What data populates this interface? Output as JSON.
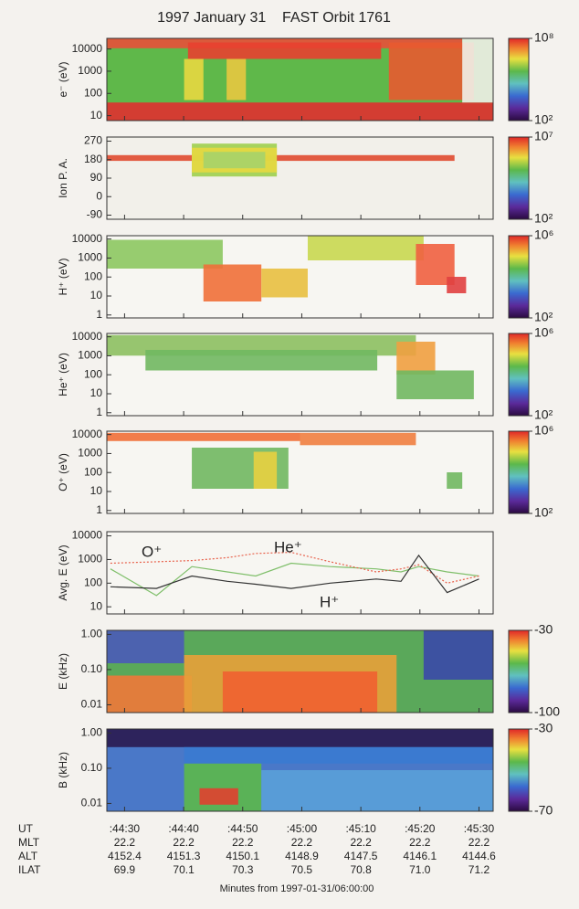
{
  "figure": {
    "title": "1997 January 31    FAST Orbit 1761"
  },
  "chart_data": [
    {
      "type": "heatmap",
      "ylabel": "e⁻ (eV)",
      "log_scale": true,
      "ylim": [
        6,
        30000
      ],
      "yticks": [
        10,
        100,
        1000,
        10000
      ],
      "background": "#5fb84a",
      "clim": [
        100,
        100000000
      ],
      "cticks": [
        {
          "value": 100,
          "label": "10²"
        },
        {
          "value": 100000000,
          "label": "10⁸"
        }
      ]
    },
    {
      "type": "heatmap",
      "ylabel": "Ion P. A.",
      "log_scale": false,
      "ylim": [
        -110,
        290
      ],
      "yticks": [
        -90,
        0,
        90,
        180,
        270
      ],
      "background": "#f2f0ea",
      "clim": [
        100,
        10000000
      ],
      "cticks": [
        {
          "value": 100,
          "label": "10²"
        },
        {
          "value": 10000000,
          "label": "10⁷"
        }
      ]
    },
    {
      "type": "heatmap",
      "ylabel": "H⁺ (eV)",
      "log_scale": true,
      "ylim": [
        0.7,
        15000
      ],
      "yticks": [
        1,
        10,
        100,
        1000,
        10000
      ],
      "background": "#f7f6f2",
      "clim": [
        100,
        1000000
      ],
      "cticks": [
        {
          "value": 100,
          "label": "10²"
        },
        {
          "value": 1000000,
          "label": "10⁶"
        }
      ]
    },
    {
      "type": "heatmap",
      "ylabel": "He⁺ (eV)",
      "log_scale": true,
      "ylim": [
        0.7,
        15000
      ],
      "yticks": [
        1,
        10,
        100,
        1000,
        10000
      ],
      "background": "#f7f6f2",
      "clim": [
        100,
        1000000
      ],
      "cticks": [
        {
          "value": 100,
          "label": "10²"
        },
        {
          "value": 1000000,
          "label": "10⁶"
        }
      ]
    },
    {
      "type": "heatmap",
      "ylabel": "O⁺ (eV)",
      "log_scale": true,
      "ylim": [
        0.7,
        15000
      ],
      "yticks": [
        1,
        10,
        100,
        1000,
        10000
      ],
      "background": "#f7f6f2",
      "clim": [
        100,
        1000000
      ],
      "cticks": [
        {
          "value": 100,
          "label": "10²"
        },
        {
          "value": 1000000,
          "label": "10⁶"
        }
      ]
    },
    {
      "type": "line",
      "ylabel": "Avg. E  (eV)",
      "log_scale": true,
      "ylim": [
        5,
        15000
      ],
      "yticks": [
        10,
        100,
        1000,
        10000
      ],
      "x": [
        44.46,
        44.59,
        44.69,
        44.79,
        44.87,
        44.97,
        45.08,
        45.21,
        45.28,
        45.33,
        45.41,
        45.5
      ],
      "series": [
        {
          "name": "O⁺",
          "color": "#7fbf6a",
          "values": [
            400,
            30,
            500,
            300,
            200,
            700,
            500,
            400,
            300,
            500,
            300,
            200
          ]
        },
        {
          "name": "He⁺",
          "color": "#e8604a",
          "values": [
            700,
            800,
            900,
            1200,
            1800,
            2000,
            800,
            300,
            400,
            600,
            100,
            200
          ]
        },
        {
          "name": "H⁺",
          "color": "#333333",
          "values": [
            70,
            60,
            200,
            120,
            90,
            60,
            100,
            150,
            120,
            1500,
            40,
            150
          ]
        }
      ]
    },
    {
      "type": "heatmap",
      "ylabel": "E (kHz)",
      "log_scale": true,
      "ylim": [
        0.006,
        1.3
      ],
      "yticks": [
        {
          "value": 0.01,
          "label": "0.01"
        },
        {
          "value": 0.1,
          "label": "0.10"
        },
        {
          "value": 1,
          "label": "1.00"
        }
      ],
      "background": "#5aa85a",
      "clim": [
        -100,
        -30
      ],
      "cticks": [
        -100,
        -30
      ]
    },
    {
      "type": "heatmap",
      "ylabel": "B (kHz)",
      "log_scale": true,
      "ylim": [
        0.006,
        1.3
      ],
      "yticks": [
        {
          "value": 0.01,
          "label": "0.01"
        },
        {
          "value": 0.1,
          "label": "0.10"
        },
        {
          "value": 1,
          "label": "1.00"
        }
      ],
      "background": "#4a78c8",
      "clim": [
        -70,
        -30
      ],
      "cticks": [
        -70,
        -30
      ]
    }
  ],
  "x_axis": {
    "label": "Minutes from 1997-01-31/06:00:00",
    "row_label": "UT",
    "xlim": [
      44.45,
      45.54
    ],
    "xticks": [
      {
        "value": 44.5,
        "label": ":44:30"
      },
      {
        "value": 44.6667,
        "label": ":44:40"
      },
      {
        "value": 44.8333,
        "label": ":44:50"
      },
      {
        "value": 45,
        "label": ":45:00"
      },
      {
        "value": 45.1667,
        "label": ":45:10"
      },
      {
        "value": 45.3333,
        "label": ":45:20"
      },
      {
        "value": 45.5,
        "label": ":45:30"
      }
    ],
    "rows": [
      {
        "label": "MLT",
        "values": [
          "22.2",
          "22.2",
          "22.2",
          "22.2",
          "22.2",
          "22.2",
          "22.2"
        ]
      },
      {
        "label": "ALT",
        "values": [
          "4152.4",
          "4151.3",
          "4150.1",
          "4148.9",
          "4147.5",
          "4146.1",
          "4144.6"
        ]
      },
      {
        "label": "ILAT",
        "values": [
          "69.9",
          "70.1",
          "70.3",
          "70.5",
          "70.8",
          "71.0",
          "71.2"
        ]
      }
    ]
  }
}
